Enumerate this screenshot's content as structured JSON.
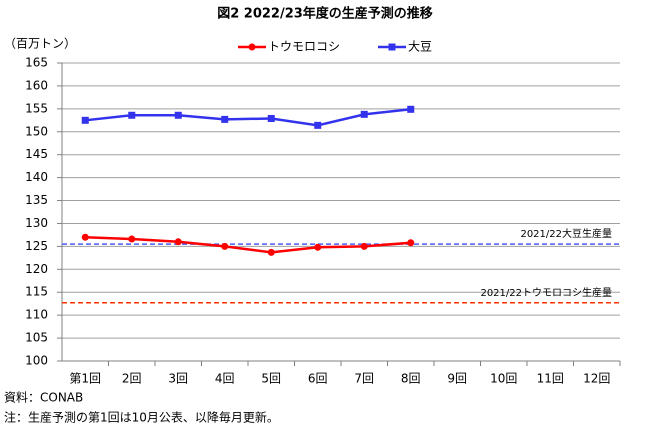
{
  "chart_data": {
    "type": "line",
    "title": "図2  2022/23年度の生産予測の推移",
    "y_label": "（百万トン）",
    "categories": [
      "第1回",
      "2回",
      "3回",
      "4回",
      "5回",
      "6回",
      "7回",
      "8回",
      "9回",
      "10回",
      "11回",
      "12回"
    ],
    "series": [
      {
        "name": "トウモロコシ",
        "color": "#ff0000",
        "marker": "circle",
        "values": [
          127.0,
          126.6,
          126.0,
          125.0,
          123.7,
          124.8,
          125.0,
          125.8,
          null,
          null,
          null,
          null
        ]
      },
      {
        "name": "大豆",
        "color": "#3333ee",
        "marker": "square",
        "values": [
          152.5,
          153.6,
          153.6,
          152.7,
          152.9,
          151.4,
          153.8,
          154.9,
          null,
          null,
          null,
          null
        ]
      }
    ],
    "reference_lines": [
      {
        "label": "2021/22大豆生産量",
        "value": 125.5,
        "color": "#4a5cff"
      },
      {
        "label": "2021/22トウモロコシ生産量",
        "value": 112.7,
        "color": "#ff3300"
      }
    ],
    "ylim": [
      100,
      165
    ],
    "yticks": [
      100,
      105,
      110,
      115,
      120,
      125,
      130,
      135,
      140,
      145,
      150,
      155,
      160,
      165
    ],
    "grid": true,
    "legend": "top",
    "notes": [
      "資料：CONAB",
      "注：生産予測の第1回は10月公表、以降毎月更新。"
    ]
  }
}
